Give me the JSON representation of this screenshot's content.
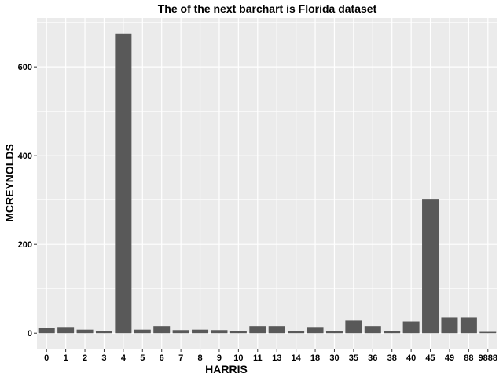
{
  "chart_data": {
    "type": "bar",
    "title": "The of the next barchart is Florida dataset",
    "xlabel": "HARRIS",
    "ylabel": "MCREYNOLDS",
    "categories": [
      "0",
      "1",
      "2",
      "3",
      "4",
      "5",
      "6",
      "7",
      "8",
      "9",
      "10",
      "11",
      "13",
      "14",
      "18",
      "30",
      "35",
      "36",
      "38",
      "40",
      "45",
      "49",
      "88",
      "9888"
    ],
    "values": [
      12,
      14,
      8,
      5,
      675,
      8,
      16,
      7,
      8,
      7,
      5,
      16,
      16,
      5,
      14,
      5,
      28,
      16,
      5,
      26,
      301,
      35,
      35,
      3
    ],
    "ylim": [
      -35,
      710
    ],
    "yticks": [
      0,
      200,
      400,
      600
    ],
    "grid": true,
    "legend": "none",
    "colors": {
      "bar": "#595959",
      "panel": "#ebebeb",
      "grid": "#ffffff",
      "text": "#000000"
    }
  }
}
